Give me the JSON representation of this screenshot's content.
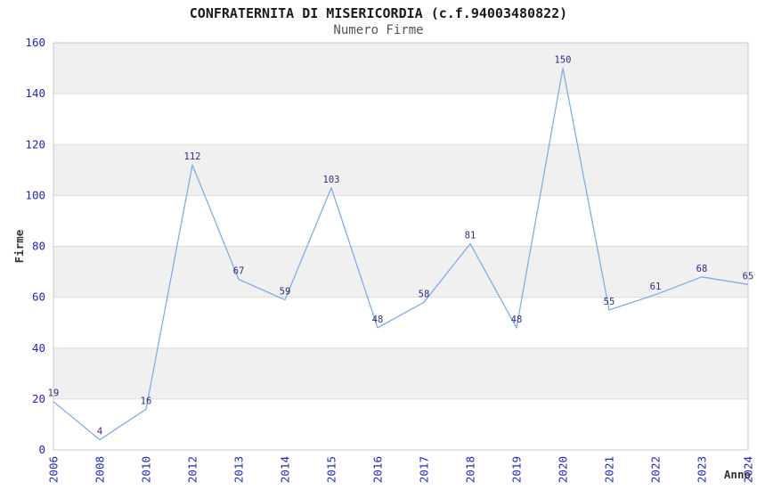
{
  "title": "CONFRATERNITA DI MISERICORDIA (c.f.94003480822)",
  "subtitle": "Numero Firme",
  "chart_data": {
    "type": "line",
    "title": "CONFRATERNITA DI MISERICORDIA (c.f.94003480822)",
    "subtitle": "Numero Firme",
    "xlabel": "Anno",
    "ylabel": "Firme",
    "categories": [
      "2006",
      "2008",
      "2010",
      "2012",
      "2013",
      "2014",
      "2015",
      "2016",
      "2017",
      "2018",
      "2019",
      "2020",
      "2021",
      "2022",
      "2023",
      "2024"
    ],
    "values": [
      19,
      4,
      16,
      112,
      67,
      59,
      103,
      48,
      58,
      81,
      48,
      150,
      55,
      61,
      68,
      65
    ],
    "ylim": [
      0,
      160
    ],
    "ytick_step": 20,
    "yticks": [
      0,
      20,
      40,
      60,
      80,
      100,
      120,
      140,
      160
    ],
    "grid": "horizontal-bands-alternating",
    "legend": "none",
    "data_labels_shown": true,
    "colors": {
      "line": "#7dafe8",
      "data_label": "#2d2d87",
      "tick_label": "#2323cc",
      "band": "#f0f0f0",
      "gridline": "#dcdcdc",
      "plot_border": "#c9c9c9",
      "axis_label": "#333333",
      "title": "#1a1a1a",
      "subtitle": "#545454"
    }
  }
}
